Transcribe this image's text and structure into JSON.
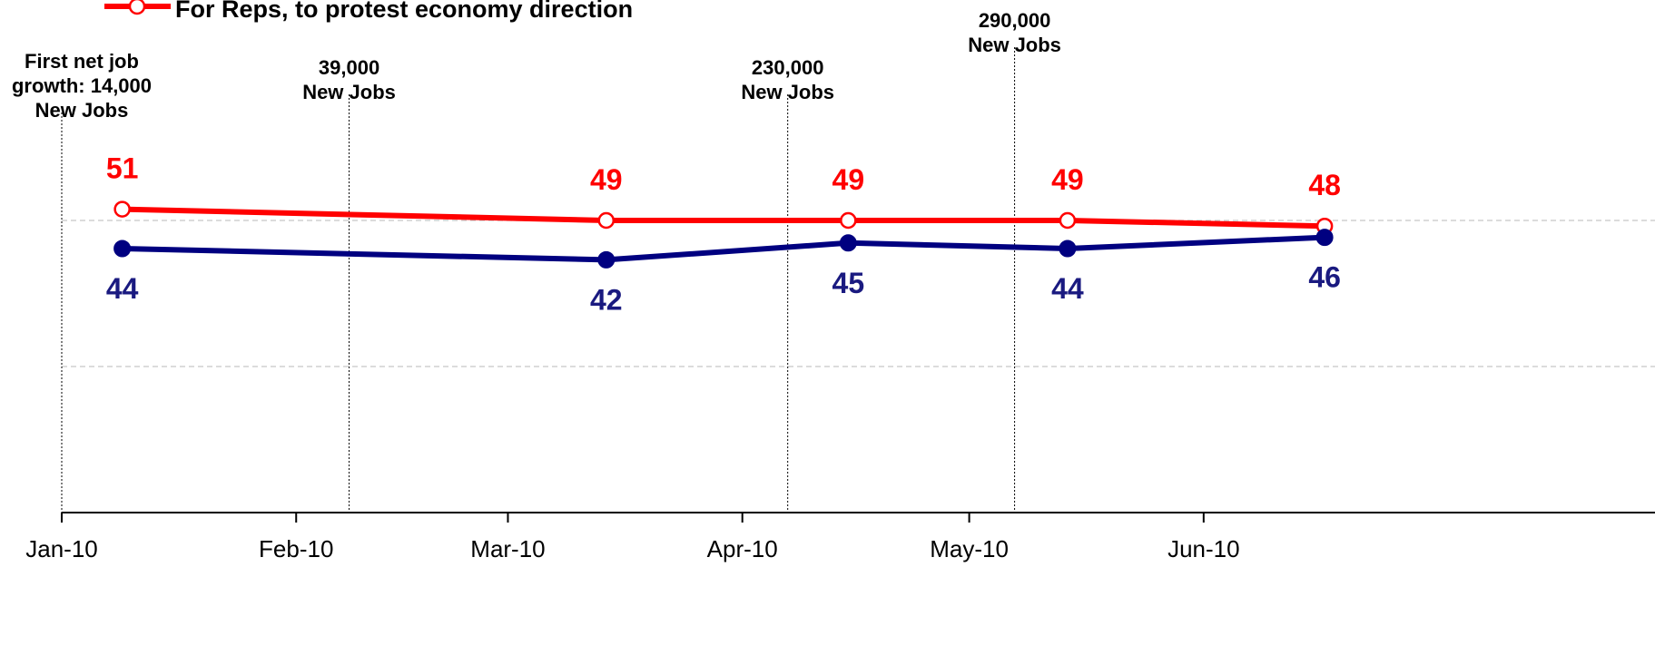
{
  "chart_data": {
    "type": "line",
    "x_axis": {
      "tick_labels": [
        "Jan-10",
        "Feb-10",
        "Mar-10",
        "Apr-10",
        "May-10",
        "Jun-10"
      ]
    },
    "ylim": [
      0,
      60
    ],
    "grid": "horizontal dashed",
    "legend_placement": "top-left",
    "series": [
      {
        "name": "For Reps, to protest economy direction",
        "color": "#ff0000",
        "marker": "hollow-circle",
        "x": [
          "2010-01-09",
          "2010-03-14",
          "2010-04-15",
          "2010-05-14",
          "2010-06-17"
        ],
        "values": [
          51,
          49,
          49,
          49,
          48
        ],
        "labels": [
          "51",
          "49",
          "49",
          "49",
          "48"
        ]
      },
      {
        "name": "",
        "color": "#000080",
        "marker": "filled-circle",
        "x": [
          "2010-01-09",
          "2010-03-14",
          "2010-04-15",
          "2010-05-14",
          "2010-06-17"
        ],
        "values": [
          44,
          42,
          45,
          44,
          46
        ],
        "labels": [
          "44",
          "42",
          "45",
          "44",
          "46"
        ]
      }
    ],
    "annotations": [
      {
        "x": "2010-01-01",
        "lines": [
          "First net job",
          "growth: 14,000",
          "New Jobs"
        ]
      },
      {
        "x": "2010-02-08",
        "lines": [
          "39,000",
          "New Jobs"
        ]
      },
      {
        "x": "2010-04-07",
        "lines": [
          "230,000",
          "New Jobs"
        ]
      },
      {
        "x": "2010-05-07",
        "lines": [
          "290,000",
          "New Jobs"
        ]
      }
    ]
  }
}
